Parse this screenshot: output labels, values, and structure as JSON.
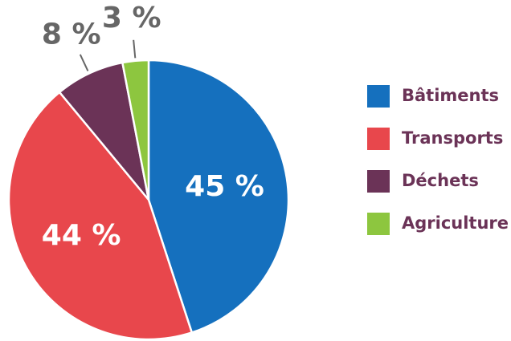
{
  "chart_data": {
    "type": "pie",
    "categories": [
      "Bâtiments",
      "Transports",
      "Déchets",
      "Agriculture"
    ],
    "values": [
      45,
      44,
      8,
      3
    ],
    "value_labels": [
      "45 %",
      "44 %",
      "8 %",
      "3 %"
    ],
    "colors": [
      "#1570be",
      "#e8474c",
      "#6b3357",
      "#8dc63f"
    ],
    "legend": "right"
  }
}
